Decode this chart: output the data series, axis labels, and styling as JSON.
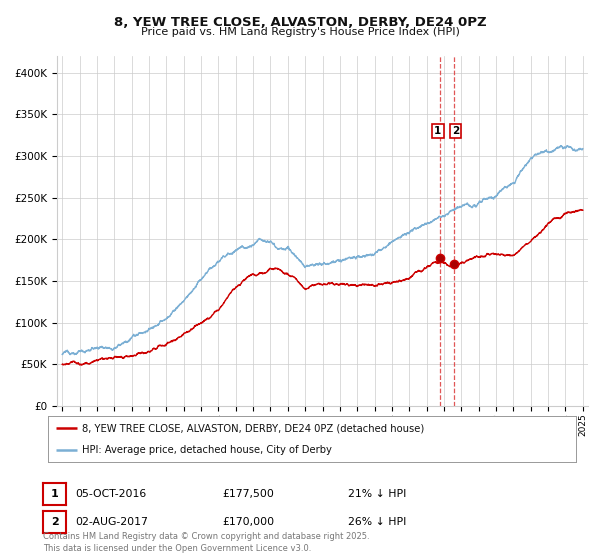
{
  "title1": "8, YEW TREE CLOSE, ALVASTON, DERBY, DE24 0PZ",
  "title2": "Price paid vs. HM Land Registry's House Price Index (HPI)",
  "red_label": "8, YEW TREE CLOSE, ALVASTON, DERBY, DE24 0PZ (detached house)",
  "blue_label": "HPI: Average price, detached house, City of Derby",
  "annotation1_date": "05-OCT-2016",
  "annotation1_price": "£177,500",
  "annotation1_hpi": "21% ↓ HPI",
  "annotation2_date": "02-AUG-2017",
  "annotation2_price": "£170,000",
  "annotation2_hpi": "26% ↓ HPI",
  "footer": "Contains HM Land Registry data © Crown copyright and database right 2025.\nThis data is licensed under the Open Government Licence v3.0.",
  "red_color": "#cc0000",
  "blue_color": "#7bafd4",
  "vline_color": "#dd4444",
  "grid_color": "#cccccc",
  "background_color": "#ffffff",
  "ylim": [
    0,
    420000
  ],
  "yticks": [
    0,
    50000,
    100000,
    150000,
    200000,
    250000,
    300000,
    350000,
    400000
  ],
  "year_start": 1995,
  "year_end": 2025,
  "transaction1_year": 2016.75,
  "transaction2_year": 2017.58,
  "transaction1_price": 177500,
  "transaction2_price": 170000,
  "blue_anchors_year": [
    1995,
    1996,
    1997,
    1998,
    1999,
    2000,
    2001,
    2002,
    2003,
    2004,
    2005,
    2006,
    2007,
    2008,
    2009,
    2010,
    2011,
    2012,
    2013,
    2014,
    2015,
    2016,
    2016.75,
    2017.58,
    2018,
    2019,
    2020,
    2021,
    2022,
    2023,
    2024,
    2025
  ],
  "blue_anchors_val": [
    62000,
    65000,
    70000,
    76000,
    84000,
    95000,
    107000,
    130000,
    153000,
    173000,
    188000,
    198000,
    207000,
    195000,
    175000,
    178000,
    177000,
    178000,
    183000,
    193000,
    202000,
    218000,
    228000,
    233000,
    238000,
    243000,
    248000,
    270000,
    295000,
    300000,
    305000,
    300000
  ],
  "red_anchors_year": [
    1995,
    1996,
    1997,
    1998,
    1999,
    2000,
    2001,
    2002,
    2003,
    2004,
    2005,
    2006,
    2007,
    2008,
    2009,
    2010,
    2011,
    2012,
    2013,
    2014,
    2015,
    2016,
    2016.75,
    2017.58,
    2018,
    2019,
    2020,
    2021,
    2022,
    2023,
    2024,
    2025
  ],
  "red_anchors_val": [
    50000,
    50000,
    51000,
    53000,
    57000,
    63000,
    72000,
    85000,
    100000,
    120000,
    142000,
    155000,
    163000,
    158000,
    133000,
    140000,
    145000,
    142000,
    148000,
    153000,
    160000,
    170000,
    177500,
    170000,
    175000,
    179000,
    182000,
    185000,
    200000,
    220000,
    235000,
    240000
  ]
}
